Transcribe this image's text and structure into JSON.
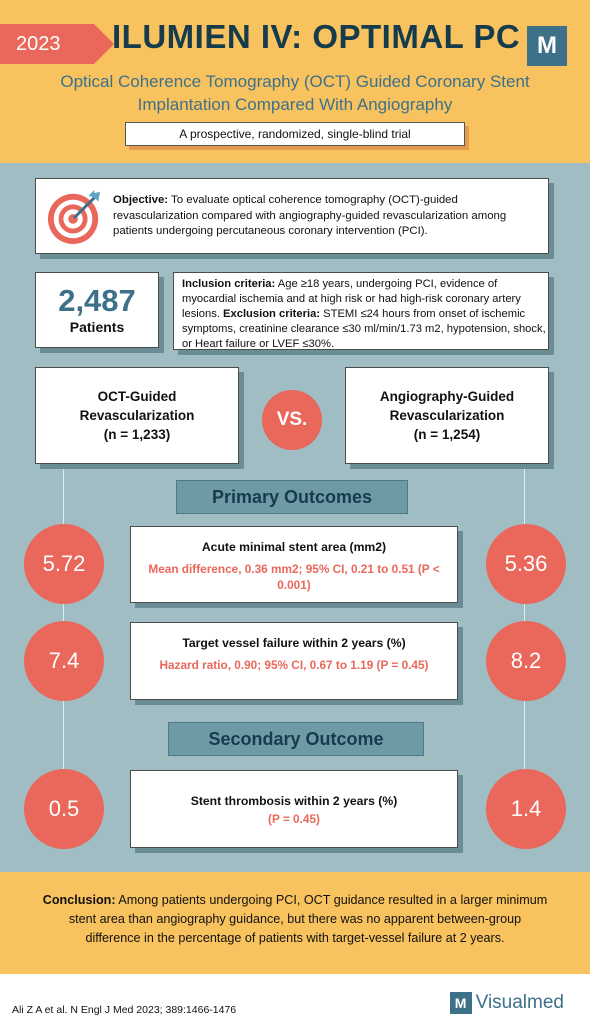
{
  "header": {
    "year": "2023",
    "title": "ILUMIEN IV: OPTIMAL PC",
    "logo_letter": "M",
    "subtitle": "Optical Coherence Tomography (OCT) Guided Coronary Stent Implantation Compared With Angiography",
    "design": "A prospective, randomized, single-blind trial"
  },
  "objective": {
    "label": "Objective:",
    "text": " To evaluate optical coherence tomography (OCT)-guided revascularization compared with angiography-guided revascularization among patients undergoing percutaneous coronary intervention (PCI).",
    "icon": "target-icon"
  },
  "patients": {
    "count": "2,487",
    "label": "Patients"
  },
  "criteria": {
    "inclusion_label": "Inclusion criteria:",
    "inclusion_text": " Age ≥18 years, undergoing PCI, evidence of myocardial ischemia and at high risk or had high-risk coronary artery lesions. ",
    "exclusion_label": "Exclusion criteria:",
    "exclusion_text": " STEMI ≤24 hours from onset of ischemic symptoms, creatinine clearance ≤30 ml/min/1.73 m2, hypotension, shock, or Heart failure or LVEF ≤30%."
  },
  "groups": {
    "left": {
      "name": "OCT-Guided Revascularization",
      "n": "(n = 1,233)"
    },
    "right": {
      "name": "Angiography-Guided Revascularization",
      "n": "(n = 1,254)"
    },
    "vs": "VS."
  },
  "primary_label": "Primary Outcomes",
  "secondary_label": "Secondary Outcome",
  "outcomes": [
    {
      "title": "Acute minimal stent area (mm2)",
      "stats": "Mean difference, 0.36 mm2; 95% CI, 0.21 to 0.51 (P < 0.001)",
      "left": "5.72",
      "right": "5.36"
    },
    {
      "title": "Target vessel failure within 2 years (%)",
      "stats": "Hazard ratio, 0.90; 95% CI, 0.67 to 1.19 (P = 0.45)",
      "left": "7.4",
      "right": "8.2"
    },
    {
      "title": "Stent thrombosis within 2 years (%)",
      "stats": "(P = 0.45)",
      "left": "0.5",
      "right": "1.4"
    }
  ],
  "conclusion": {
    "label": "Conclusion:",
    "text": " Among patients undergoing PCI, OCT guidance resulted in a larger minimum stent area than angiography guidance, but there was no apparent between-group difference in the percentage of patients with target-vessel failure at 2 years."
  },
  "footer": {
    "citation": "Ali Z A  et al. N Engl J Med 2023; 389:1466-1476",
    "brand_letter": "M",
    "brand_name": "Visualmed"
  },
  "colors": {
    "accent_red": "#e9675b",
    "header_yellow": "#f8c35e",
    "navy": "#153b4d",
    "teal": "#3d7189",
    "background": "#9fbdc3"
  }
}
